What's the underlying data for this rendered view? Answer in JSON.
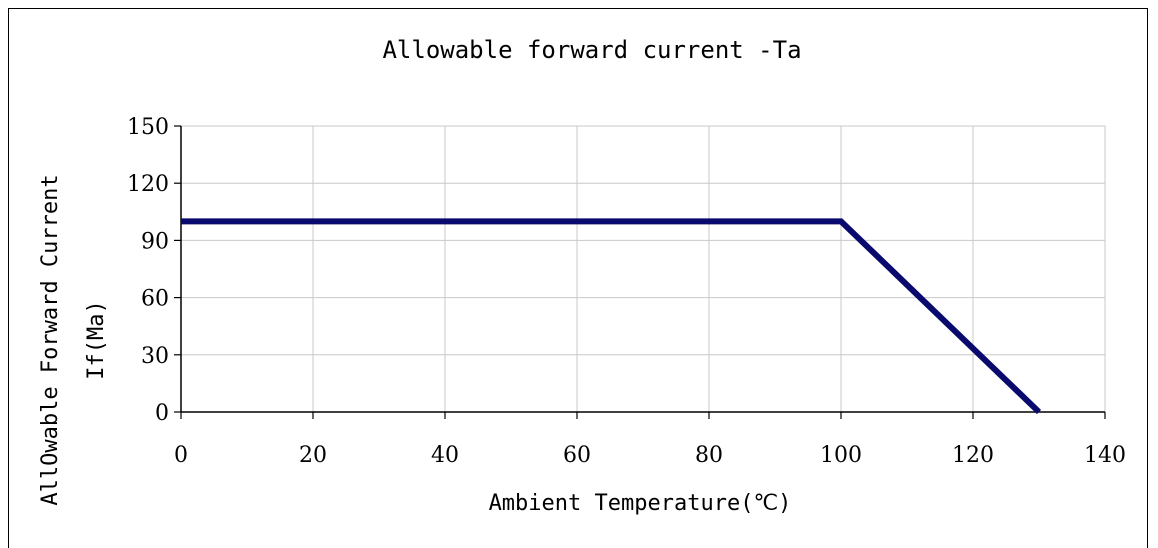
{
  "chart_data": {
    "type": "line",
    "title": "Allowable forward current -Ta",
    "xlabel": "Ambient Temperature(℃)",
    "ylabel_line1": "AllOwable Forward Current",
    "ylabel_line2": "If(Ma)",
    "xlim": [
      0,
      140
    ],
    "ylim": [
      0,
      150
    ],
    "xticks": [
      0,
      20,
      40,
      60,
      80,
      100,
      120,
      140
    ],
    "yticks": [
      0,
      30,
      60,
      90,
      120,
      150
    ],
    "grid": true,
    "series": [
      {
        "color": "#0a0a6e",
        "points": [
          [
            0,
            100
          ],
          [
            100,
            100
          ],
          [
            130,
            0
          ]
        ]
      }
    ]
  }
}
